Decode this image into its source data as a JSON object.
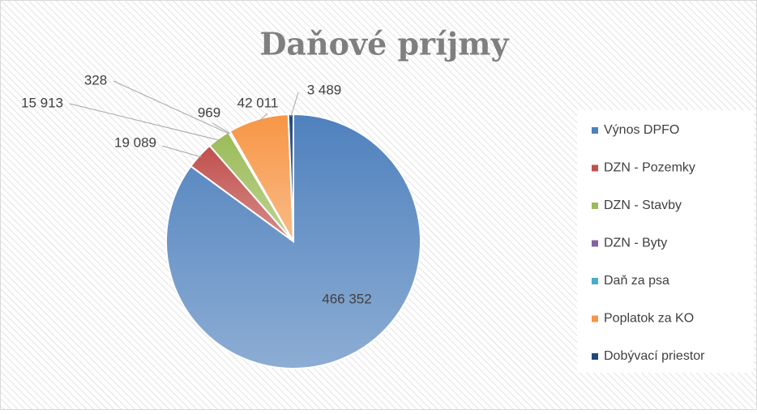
{
  "chart_data": {
    "type": "pie",
    "title": "Daňové príjmy",
    "categories": [
      "Výnos DPFO",
      "DZN - Pozemky",
      "DZN - Stavby",
      "DZN - Byty",
      "Daň za psa",
      "Poplatok za KO",
      "Dobývací priestor"
    ],
    "values": [
      466352,
      19089,
      15913,
      328,
      969,
      42011,
      3489
    ],
    "value_labels": [
      "466 352",
      "19 089",
      "15 913",
      "328",
      "969",
      "42 011",
      "3 489"
    ],
    "colors": [
      "#4f81bd",
      "#c0504d",
      "#9bbb59",
      "#8064a2",
      "#4bacc6",
      "#f79646",
      "#1f497d"
    ],
    "legend": "right"
  }
}
